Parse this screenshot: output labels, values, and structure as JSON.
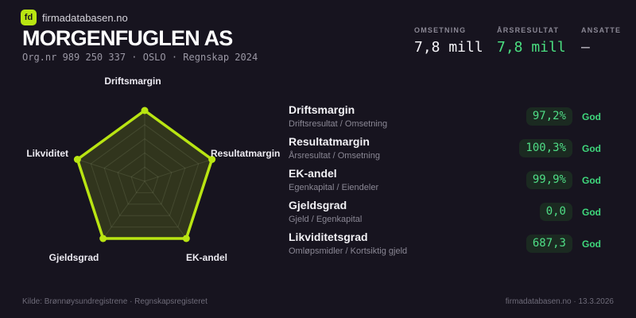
{
  "brand": {
    "logo_text": "fd",
    "site": "firmadatabasen.no"
  },
  "header": {
    "company_name": "MORGENFUGLEN AS",
    "org_line": "Org.nr 989 250 337 · OSLO · Regnskap 2024"
  },
  "stats": [
    {
      "label": "OMSETNING",
      "value": "7,8 mill",
      "tone": "white"
    },
    {
      "label": "ÅRSRESULTAT",
      "value": "7,8 mill",
      "tone": "green"
    },
    {
      "label": "ANSATTE",
      "value": "–",
      "tone": "muted"
    }
  ],
  "chart_data": {
    "type": "radar",
    "axes": [
      "Driftsmargin",
      "Resultatmargin",
      "EK-andel",
      "Gjeldsgrad",
      "Likviditet"
    ],
    "values": [
      97.2,
      100.3,
      99.9,
      0.0,
      687.3
    ],
    "values_display": [
      "97,2%",
      "100,3%",
      "99,9%",
      "0,0",
      "687,3"
    ],
    "values_normalized": [
      1,
      1,
      1,
      1,
      1
    ],
    "levels": 5,
    "note": "all five metrics rated God, polygon drawn at full radius on every axis",
    "accent": "#b9e512",
    "fill": "rgba(185,229,18,0.16)",
    "grid_color": "rgba(255,255,255,0.10)"
  },
  "metrics": [
    {
      "name": "Driftsmargin",
      "formula": "Driftsresultat / Omsetning",
      "value": "97,2%",
      "rating": "God"
    },
    {
      "name": "Resultatmargin",
      "formula": "Årsresultat / Omsetning",
      "value": "100,3%",
      "rating": "God"
    },
    {
      "name": "EK-andel",
      "formula": "Egenkapital / Eiendeler",
      "value": "99,9%",
      "rating": "God"
    },
    {
      "name": "Gjeldsgrad",
      "formula": "Gjeld / Egenkapital",
      "value": "0,0",
      "rating": "God"
    },
    {
      "name": "Likviditetsgrad",
      "formula": "Omløpsmidler / Kortsiktig gjeld",
      "value": "687,3",
      "rating": "God"
    }
  ],
  "footer": {
    "source": "Kilde: Brønnøysundregistrene · Regnskapsregisteret",
    "attribution": "firmadatabasen.no · 13.3.2026"
  },
  "colors": {
    "background": "#17141f",
    "accent": "#b9e512",
    "positive_green": "#4ade80",
    "badge_bg": "#1b2a21",
    "text_primary": "#ffffff",
    "text_secondary": "#8a8794"
  }
}
